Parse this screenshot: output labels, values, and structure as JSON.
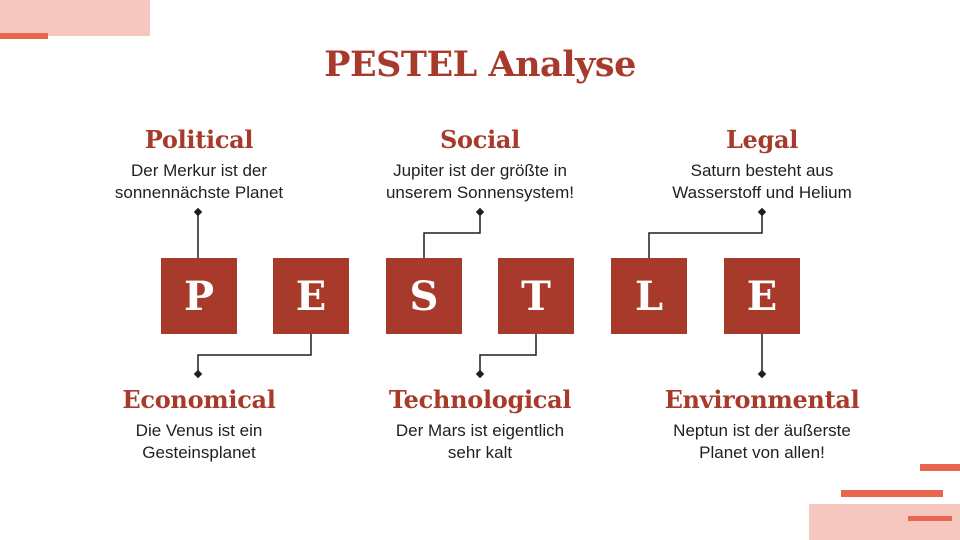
{
  "title": "PESTEL Analyse",
  "colors": {
    "accent": "#a83a2c",
    "decor_light": "#f6c7bf",
    "decor_strong": "#e8654f"
  },
  "letters": [
    "P",
    "E",
    "S",
    "T",
    "L",
    "E"
  ],
  "factors": {
    "political": {
      "heading": "Political",
      "lines": [
        "Der Merkur ist der",
        "sonnennächste Planet"
      ]
    },
    "social": {
      "heading": "Social",
      "lines": [
        "Jupiter ist der größte in",
        "unserem Sonnensystem!"
      ]
    },
    "legal": {
      "heading": "Legal",
      "lines": [
        "Saturn besteht aus",
        "Wasserstoff und Helium"
      ]
    },
    "economical": {
      "heading": "Economical",
      "lines": [
        "Die Venus ist ein",
        "Gesteinsplanet"
      ]
    },
    "technological": {
      "heading": "Technological",
      "lines": [
        "Der Mars ist eigentlich",
        "sehr kalt"
      ]
    },
    "environmental": {
      "heading": "Environmental",
      "lines": [
        "Neptun ist der äußerste",
        "Planet von allen!"
      ]
    }
  }
}
